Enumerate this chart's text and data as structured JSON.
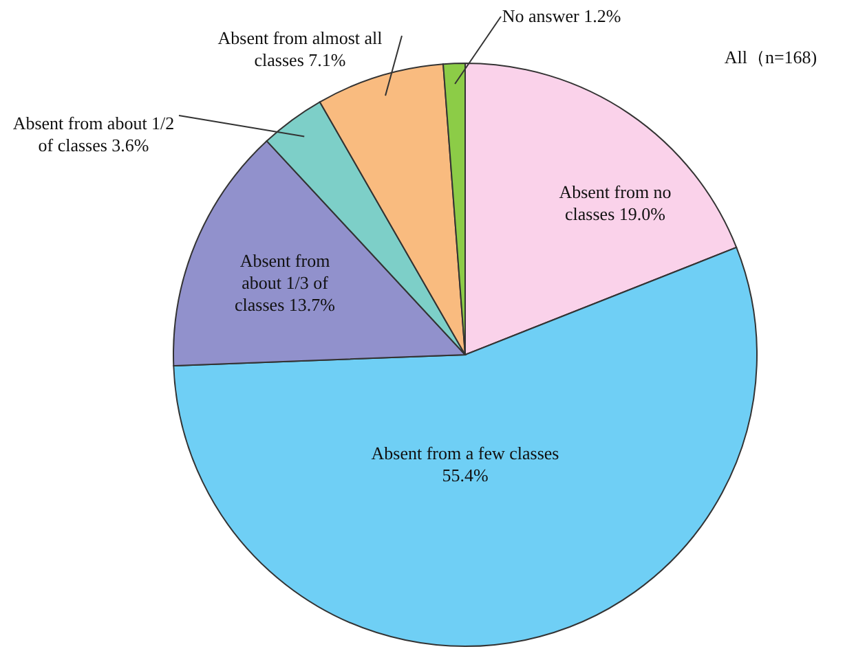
{
  "chart_data": {
    "type": "pie",
    "categories": [
      "Absent from no classes",
      "Absent from a few classes",
      "Absent from about 1/3 of classes",
      "Absent from about 1/2 of classes",
      "Absent from almost all classes",
      "No answer"
    ],
    "values": [
      19.0,
      55.4,
      13.7,
      3.6,
      7.1,
      1.2
    ],
    "value_labels": [
      "19.0%",
      "55.4%",
      "13.7%",
      "3.6%",
      "7.1%",
      "1.2%"
    ],
    "colors": [
      "#fad2ea",
      "#6fcff5",
      "#9191cc",
      "#7dcfc8",
      "#f9bb7f",
      "#8ccc47"
    ],
    "annotations": [
      "All（n=168)"
    ]
  }
}
